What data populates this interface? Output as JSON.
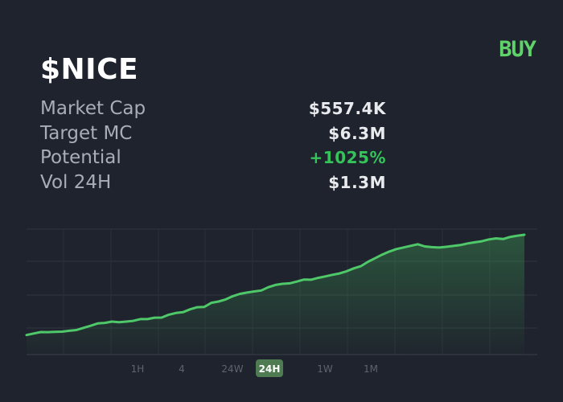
{
  "token": {
    "ticker": "$NICE"
  },
  "actions": {
    "buy_label": "BUY"
  },
  "stats": [
    {
      "label": "Market Cap",
      "value": "$557.4K"
    },
    {
      "label": "Target MC",
      "value": "$6.3M"
    },
    {
      "label": "Potential",
      "value": "+1025%"
    },
    {
      "label": "Vol 24H",
      "value": "$1.3M"
    }
  ],
  "timeframes": [
    "1H",
    "4",
    "24W",
    "24H",
    "1W",
    "1M"
  ],
  "selected_timeframe": "24H",
  "colors": {
    "background": "#1f232d",
    "accent_green": "#5fd26a",
    "positive": "#34c45a",
    "line": "#4fc869",
    "active_pill": "#4e7b52"
  },
  "chart_data": {
    "type": "area",
    "title": "",
    "xlabel": "",
    "ylabel": "",
    "grid": true,
    "x": [
      0,
      1,
      2,
      3,
      4,
      5,
      6,
      7,
      8,
      9,
      10,
      11,
      12,
      13,
      14,
      15,
      16,
      17,
      18,
      19,
      20,
      21,
      22,
      23,
      24,
      25,
      26,
      27,
      28,
      29,
      30,
      31,
      32,
      33,
      34,
      35,
      36,
      37,
      38,
      39,
      40,
      41,
      42,
      43,
      44,
      45,
      46,
      47,
      48,
      49,
      50,
      51,
      52,
      53,
      54,
      55,
      56,
      57,
      58,
      59,
      60,
      61,
      62,
      63,
      64,
      65,
      66,
      67,
      68,
      69,
      70
    ],
    "values": [
      0.5,
      3.5,
      6.5,
      6.3,
      6.8,
      7.2,
      9.0,
      10.5,
      14.8,
      19.0,
      23.8,
      24.9,
      27.4,
      26.1,
      27.4,
      28.9,
      32.4,
      32.5,
      35.3,
      35.5,
      41.4,
      44.7,
      46.3,
      52.2,
      56.3,
      57.0,
      65.3,
      67.9,
      72.1,
      78.5,
      83.2,
      85.7,
      88.1,
      90.0,
      96.6,
      101.1,
      103.4,
      104.3,
      107.9,
      112.0,
      111.7,
      115.4,
      118.3,
      121.4,
      124.3,
      128.6,
      134.4,
      138.7,
      147.6,
      154.8,
      162.1,
      168.1,
      173.1,
      176.4,
      179.7,
      182.9,
      178.5,
      177.0,
      176.3,
      177.7,
      179.5,
      181.3,
      184.5,
      186.8,
      188.9,
      192.6,
      194.7,
      193.3,
      197.5,
      200.0,
      202.0
    ],
    "ylim": [
      0,
      210
    ],
    "series": [
      {
        "values_ref": "values"
      }
    ]
  }
}
